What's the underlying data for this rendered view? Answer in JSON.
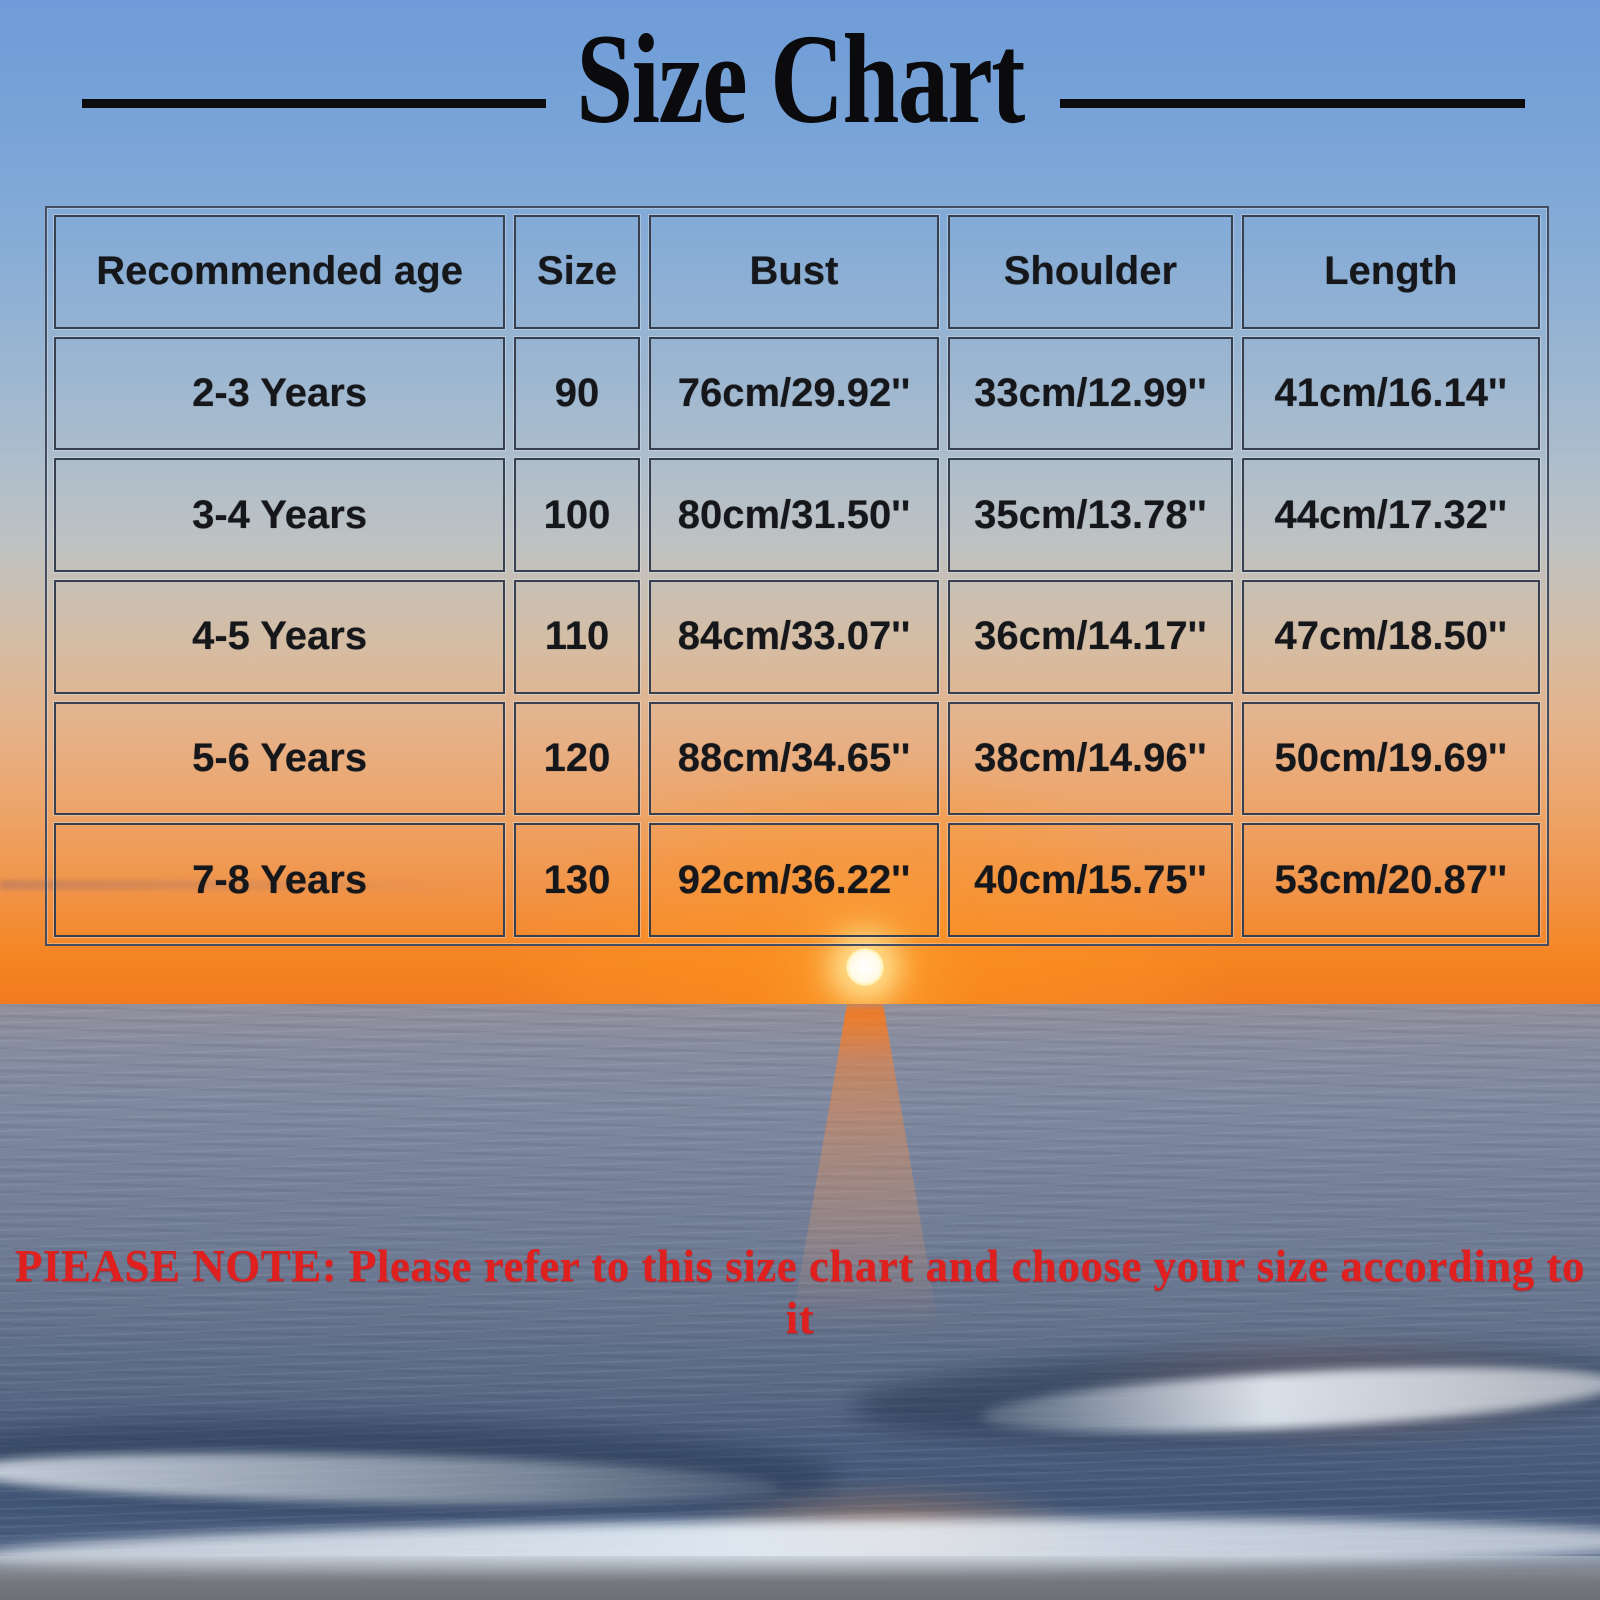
{
  "title": {
    "text": "Size Chart"
  },
  "table": {
    "headers": [
      "Recommended age",
      "Size",
      "Bust",
      "Shoulder",
      "Length"
    ],
    "rows": [
      [
        "2-3 Years",
        "90",
        "76cm/29.92''",
        "33cm/12.99''",
        "41cm/16.14''"
      ],
      [
        "3-4 Years",
        "100",
        "80cm/31.50''",
        "35cm/13.78''",
        "44cm/17.32''"
      ],
      [
        "4-5 Years",
        "110",
        "84cm/33.07''",
        "36cm/14.17''",
        "47cm/18.50''"
      ],
      [
        "5-6 Years",
        "120",
        "88cm/34.65''",
        "38cm/14.96''",
        "50cm/19.69''"
      ],
      [
        "7-8 Years",
        "130",
        "92cm/36.22''",
        "40cm/15.75''",
        "53cm/20.87''"
      ]
    ]
  },
  "note": {
    "text": "PIEASE NOTE: Please refer to this size chart and choose your size according to it"
  },
  "chart_data": {
    "type": "table",
    "title": "Size Chart",
    "columns": [
      "Recommended age",
      "Size",
      "Bust",
      "Shoulder",
      "Length"
    ],
    "rows": [
      [
        "2-3 Years",
        "90",
        "76cm/29.92''",
        "33cm/12.99''",
        "41cm/16.14''"
      ],
      [
        "3-4 Years",
        "100",
        "80cm/31.50''",
        "35cm/13.78''",
        "44cm/17.32''"
      ],
      [
        "4-5 Years",
        "110",
        "84cm/33.07''",
        "36cm/14.17''",
        "47cm/18.50''"
      ],
      [
        "5-6 Years",
        "120",
        "88cm/34.65''",
        "38cm/14.96''",
        "50cm/19.69''"
      ],
      [
        "7-8 Years",
        "130",
        "92cm/36.22''",
        "40cm/15.75''",
        "53cm/20.87''"
      ]
    ],
    "note": "PIEASE NOTE: Please refer to this size chart and choose your size according to it"
  },
  "colors": {
    "note_red": "#e01f1f",
    "title_black": "#0b0b0d",
    "table_border_dark": "#383f4f",
    "cell_text": "#16171b",
    "sky_top_blue": "#6f9cd8",
    "sunset_orange": "#f5831f",
    "ocean_blue_gray": "#78829b",
    "wave_dark_blue": "#415677",
    "foam_white": "#f0f8ff",
    "sun_core": "#ffffff"
  }
}
